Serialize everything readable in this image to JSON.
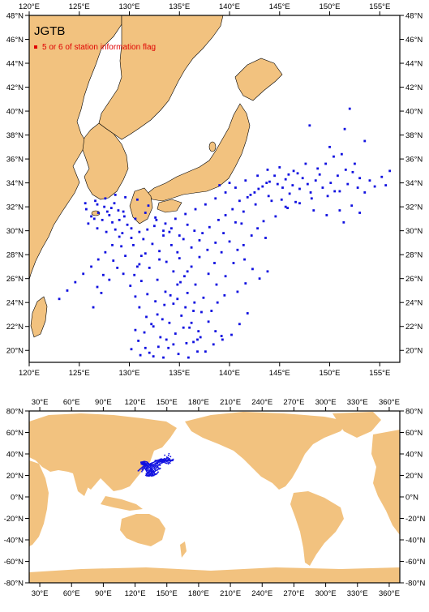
{
  "regional_map": {
    "title": "JGTB",
    "legend_label": "5 or 6 of station information flag",
    "legend_color": "#e00000",
    "station_color": "#1010e0",
    "land_color": "#f2c27f",
    "lon_range": [
      120,
      157
    ],
    "lat_range": [
      19,
      48
    ],
    "lon_ticks": [
      "120°E",
      "125°E",
      "130°E",
      "135°E",
      "140°E",
      "145°E",
      "150°E",
      "155°E"
    ],
    "lon_tick_values": [
      120,
      125,
      130,
      135,
      140,
      145,
      150,
      155
    ],
    "lat_ticks": [
      "20°N",
      "22°N",
      "24°N",
      "26°N",
      "28°N",
      "30°N",
      "32°N",
      "34°N",
      "36°N",
      "38°N",
      "40°N",
      "42°N",
      "44°N",
      "46°N",
      "48°N"
    ],
    "lat_tick_values": [
      20,
      22,
      24,
      26,
      28,
      30,
      32,
      34,
      36,
      38,
      40,
      42,
      44,
      46,
      48
    ]
  },
  "global_map": {
    "lon_range": [
      20,
      370
    ],
    "lat_range": [
      -80,
      80
    ],
    "lon_ticks": [
      "30°E",
      "60°E",
      "90°E",
      "120°E",
      "150°E",
      "180°E",
      "210°E",
      "240°E",
      "270°E",
      "300°E",
      "330°E",
      "360°E"
    ],
    "lon_tick_values": [
      30,
      60,
      90,
      120,
      150,
      180,
      210,
      240,
      270,
      300,
      330,
      360
    ],
    "lat_ticks": [
      "-80°N",
      "-60°N",
      "-40°N",
      "-20°N",
      "0°N",
      "20°N",
      "40°N",
      "60°N",
      "80°N"
    ],
    "lat_tick_values": [
      -80,
      -60,
      -40,
      -20,
      0,
      20,
      40,
      60,
      80
    ]
  },
  "stations": [
    [
      126.8,
      32.2
    ],
    [
      127.5,
      32.0
    ],
    [
      128.2,
      31.9
    ],
    [
      128.9,
      31.7
    ],
    [
      129.5,
      31.2
    ],
    [
      126.5,
      31.0
    ],
    [
      127.3,
      30.9
    ],
    [
      128.0,
      31.3
    ],
    [
      129.0,
      30.9
    ],
    [
      126.9,
      31.5
    ],
    [
      127.8,
      31.6
    ],
    [
      128.5,
      32.3
    ],
    [
      125.7,
      31.8
    ],
    [
      125.6,
      32.3
    ],
    [
      126.2,
      31.2
    ],
    [
      128.3,
      30.7
    ],
    [
      129.3,
      29.8
    ],
    [
      130.2,
      30.2
    ],
    [
      131.0,
      29.9
    ],
    [
      131.8,
      30.1
    ],
    [
      132.5,
      30.4
    ],
    [
      133.4,
      30.0
    ],
    [
      134.2,
      30.2
    ],
    [
      135.0,
      29.6
    ],
    [
      135.8,
      30.5
    ],
    [
      136.5,
      30.0
    ],
    [
      137.3,
      29.8
    ],
    [
      138.0,
      30.3
    ],
    [
      138.9,
      30.9
    ],
    [
      139.6,
      31.3
    ],
    [
      140.3,
      31.8
    ],
    [
      141.0,
      32.5
    ],
    [
      141.8,
      32.8
    ],
    [
      142.5,
      33.2
    ],
    [
      143.3,
      33.7
    ],
    [
      144.0,
      34.1
    ],
    [
      144.8,
      33.9
    ],
    [
      145.6,
      34.3
    ],
    [
      146.3,
      33.8
    ],
    [
      147.0,
      33.5
    ],
    [
      147.8,
      33.9
    ],
    [
      148.6,
      34.2
    ],
    [
      149.3,
      33.6
    ],
    [
      150.1,
      34.0
    ],
    [
      150.8,
      34.6
    ],
    [
      151.6,
      35.1
    ],
    [
      152.3,
      34.9
    ],
    [
      153.0,
      34.4
    ],
    [
      154.0,
      34.2
    ],
    [
      155.2,
      34.5
    ],
    [
      156.0,
      35.0
    ],
    [
      155.6,
      33.8
    ],
    [
      152.8,
      33.6
    ],
    [
      151.0,
      33.3
    ],
    [
      149.8,
      32.9
    ],
    [
      148.2,
      32.7
    ],
    [
      146.6,
      32.4
    ],
    [
      145.2,
      32.6
    ],
    [
      143.9,
      32.9
    ],
    [
      142.6,
      32.2
    ],
    [
      141.4,
      31.6
    ],
    [
      140.6,
      30.7
    ],
    [
      139.4,
      29.8
    ],
    [
      138.6,
      29.0
    ],
    [
      137.8,
      28.4
    ],
    [
      137.0,
      27.8
    ],
    [
      136.2,
      27.0
    ],
    [
      135.5,
      26.2
    ],
    [
      134.8,
      25.5
    ],
    [
      134.1,
      24.6
    ],
    [
      133.5,
      23.8
    ],
    [
      132.8,
      23.0
    ],
    [
      132.2,
      22.2
    ],
    [
      131.5,
      21.5
    ],
    [
      130.9,
      20.8
    ],
    [
      130.2,
      20.1
    ],
    [
      131.1,
      19.6
    ],
    [
      132.0,
      19.8
    ],
    [
      132.9,
      20.3
    ],
    [
      133.7,
      20.9
    ],
    [
      134.6,
      21.4
    ],
    [
      135.4,
      21.9
    ],
    [
      136.2,
      22.3
    ],
    [
      136.9,
      21.6
    ],
    [
      136.4,
      20.7
    ],
    [
      136.8,
      19.9
    ],
    [
      135.9,
      19.4
    ],
    [
      134.9,
      19.7
    ],
    [
      133.9,
      20.2
    ],
    [
      133.1,
      21.1
    ],
    [
      132.4,
      22.0
    ],
    [
      131.7,
      22.8
    ],
    [
      131.0,
      23.6
    ],
    [
      130.6,
      24.5
    ],
    [
      130.1,
      25.4
    ],
    [
      130.5,
      26.3
    ],
    [
      131.0,
      27.2
    ],
    [
      131.6,
      28.1
    ],
    [
      132.3,
      28.9
    ],
    [
      133.0,
      28.3
    ],
    [
      133.7,
      27.4
    ],
    [
      134.4,
      26.6
    ],
    [
      135.1,
      25.7
    ],
    [
      135.8,
      24.8
    ],
    [
      136.5,
      24.0
    ],
    [
      137.2,
      23.2
    ],
    [
      137.9,
      22.4
    ],
    [
      138.6,
      21.6
    ],
    [
      139.3,
      20.9
    ],
    [
      140.2,
      21.3
    ],
    [
      141.0,
      22.2
    ],
    [
      141.8,
      23.1
    ],
    [
      139.5,
      24.6
    ],
    [
      138.7,
      25.5
    ],
    [
      137.9,
      26.4
    ],
    [
      138.5,
      27.3
    ],
    [
      139.2,
      28.2
    ],
    [
      140.0,
      29.1
    ],
    [
      140.8,
      28.4
    ],
    [
      141.5,
      27.6
    ],
    [
      142.3,
      26.8
    ],
    [
      143.0,
      26.0
    ],
    [
      143.8,
      26.6
    ],
    [
      142.2,
      29.6
    ],
    [
      143.4,
      30.8
    ],
    [
      144.6,
      31.2
    ],
    [
      145.8,
      31.9
    ],
    [
      147.0,
      32.3
    ],
    [
      148.4,
      31.7
    ],
    [
      149.7,
      31.3
    ],
    [
      151.0,
      31.7
    ],
    [
      152.2,
      32.1
    ],
    [
      153.0,
      31.5
    ],
    [
      151.4,
      30.7
    ],
    [
      150.4,
      36.2
    ],
    [
      149.6,
      35.6
    ],
    [
      148.8,
      35.2
    ],
    [
      147.6,
      35.6
    ],
    [
      146.4,
      35.0
    ],
    [
      145.0,
      35.3
    ],
    [
      143.8,
      35.1
    ],
    [
      142.8,
      34.6
    ],
    [
      141.6,
      34.2
    ],
    [
      140.6,
      33.6
    ],
    [
      139.6,
      33.2
    ],
    [
      138.6,
      32.7
    ],
    [
      137.6,
      32.2
    ],
    [
      136.6,
      31.8
    ],
    [
      135.6,
      31.4
    ],
    [
      134.6,
      31.0
    ],
    [
      133.6,
      30.6
    ],
    [
      132.6,
      31.1
    ],
    [
      131.6,
      31.5
    ],
    [
      130.6,
      31.0
    ],
    [
      129.8,
      30.5
    ],
    [
      129.0,
      29.5
    ],
    [
      128.3,
      28.8
    ],
    [
      127.6,
      28.2
    ],
    [
      126.9,
      27.6
    ],
    [
      126.2,
      27.0
    ],
    [
      125.4,
      26.4
    ],
    [
      124.6,
      25.7
    ],
    [
      123.8,
      25.0
    ],
    [
      123.0,
      24.3
    ],
    [
      126.4,
      23.6
    ],
    [
      127.2,
      24.8
    ],
    [
      128.0,
      25.9
    ],
    [
      128.8,
      26.9
    ],
    [
      129.6,
      27.9
    ],
    [
      130.4,
      28.8
    ],
    [
      131.2,
      27.9
    ],
    [
      132.0,
      26.9
    ],
    [
      132.8,
      25.9
    ],
    [
      133.6,
      24.9
    ],
    [
      134.4,
      23.9
    ],
    [
      135.2,
      22.9
    ],
    [
      136.0,
      21.9
    ],
    [
      136.8,
      20.9
    ],
    [
      137.6,
      19.9
    ],
    [
      138.4,
      20.5
    ],
    [
      139.2,
      21.2
    ],
    [
      138.2,
      23.3
    ],
    [
      137.4,
      24.4
    ],
    [
      136.6,
      25.5
    ],
    [
      135.8,
      26.6
    ],
    [
      135.0,
      27.7
    ],
    [
      134.2,
      28.8
    ],
    [
      133.4,
      29.6
    ],
    [
      132.7,
      30.9
    ],
    [
      131.9,
      32.1
    ],
    [
      130.8,
      32.6
    ],
    [
      129.6,
      32.8
    ],
    [
      128.6,
      33.0
    ],
    [
      127.6,
      32.7
    ],
    [
      126.6,
      32.5
    ],
    [
      125.9,
      30.6
    ],
    [
      126.8,
      30.2
    ],
    [
      127.7,
      29.9
    ],
    [
      128.6,
      30.1
    ],
    [
      129.4,
      31.6
    ],
    [
      146.0,
      33.1
    ],
    [
      145.3,
      33.6
    ],
    [
      144.5,
      34.6
    ],
    [
      143.7,
      34.0
    ],
    [
      142.9,
      33.5
    ],
    [
      142.1,
      33.0
    ],
    [
      144.2,
      32.5
    ],
    [
      145.6,
      32.0
    ],
    [
      147.3,
      34.4
    ],
    [
      148.1,
      33.2
    ],
    [
      149.0,
      34.7
    ],
    [
      150.5,
      33.3
    ],
    [
      151.8,
      33.9
    ],
    [
      153.5,
      33.2
    ],
    [
      154.5,
      33.7
    ],
    [
      152.5,
      35.6
    ],
    [
      151.2,
      36.4
    ],
    [
      150.0,
      37.0
    ],
    [
      151.5,
      38.5
    ],
    [
      152.0,
      40.2
    ],
    [
      148.0,
      38.8
    ],
    [
      153.5,
      37.5
    ],
    [
      146.8,
      34.8
    ],
    [
      145.9,
      34.7
    ],
    [
      140.0,
      34.0
    ],
    [
      139.0,
      33.8
    ],
    [
      141.2,
      30.6
    ],
    [
      142.8,
      30.2
    ],
    [
      143.6,
      29.4
    ],
    [
      141.4,
      28.8
    ],
    [
      140.4,
      27.3
    ],
    [
      139.6,
      26.2
    ],
    [
      138.8,
      24.0
    ],
    [
      140.8,
      24.9
    ],
    [
      141.6,
      25.6
    ],
    [
      134.0,
      22.3
    ],
    [
      133.3,
      22.6
    ],
    [
      132.6,
      24.1
    ],
    [
      131.8,
      24.7
    ],
    [
      131.2,
      25.8
    ],
    [
      130.8,
      27.0
    ],
    [
      129.4,
      26.4
    ],
    [
      128.4,
      27.5
    ],
    [
      127.4,
      26.3
    ],
    [
      126.8,
      25.3
    ],
    [
      133.0,
      27.6
    ],
    [
      134.8,
      28.2
    ],
    [
      136.2,
      28.6
    ],
    [
      137.0,
      29.2
    ],
    [
      135.4,
      29.3
    ],
    [
      134.0,
      29.9
    ],
    [
      131.4,
      29.3
    ],
    [
      130.2,
      29.4
    ],
    [
      129.2,
      28.7
    ],
    [
      136.4,
      23.3
    ],
    [
      135.6,
      23.6
    ],
    [
      134.8,
      24.3
    ],
    [
      137.1,
      21.1
    ],
    [
      135.7,
      20.6
    ],
    [
      134.4,
      20.5
    ],
    [
      133.4,
      19.4
    ],
    [
      132.4,
      19.5
    ],
    [
      131.6,
      20.2
    ],
    [
      130.6,
      21.7
    ]
  ],
  "global_station_box": {
    "lon_range": [
      128,
      152
    ],
    "lat_range": [
      19,
      36
    ]
  }
}
